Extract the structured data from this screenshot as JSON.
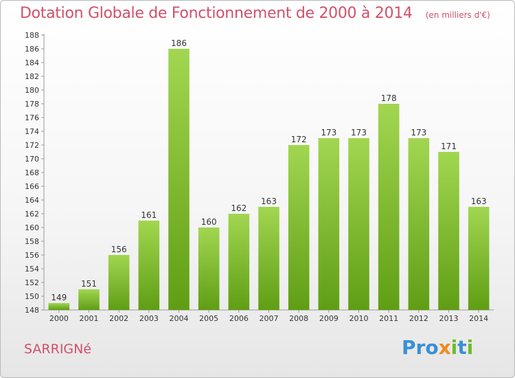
{
  "title": "Dotation Globale de Fonctionnement de 2000 à 2014",
  "subtitle": "(en milliers d'€)",
  "commune": "SARRIGNé",
  "logo": "Proxiti",
  "colors": {
    "title": "#d0506a",
    "bar_top": "#a2d651",
    "bar_bottom": "#5f9e14",
    "logo_p": "#3a8fd6",
    "logo_x": "#f08a1c",
    "logo_i": "#6cbc2a"
  },
  "chart_data": {
    "type": "bar",
    "categories": [
      "2000",
      "2001",
      "2002",
      "2003",
      "2004",
      "2005",
      "2006",
      "2007",
      "2008",
      "2009",
      "2010",
      "2011",
      "2012",
      "2013",
      "2014"
    ],
    "values": [
      149,
      151,
      156,
      161,
      186,
      160,
      162,
      163,
      172,
      173,
      173,
      178,
      173,
      171,
      163
    ],
    "title": "Dotation Globale de Fonctionnement de 2000 à 2014",
    "ylim": [
      148,
      188
    ],
    "yticks": [
      148,
      150,
      152,
      154,
      156,
      158,
      160,
      162,
      164,
      166,
      168,
      170,
      172,
      174,
      176,
      178,
      180,
      182,
      184,
      186,
      188
    ],
    "grid": false,
    "legend": "none"
  }
}
